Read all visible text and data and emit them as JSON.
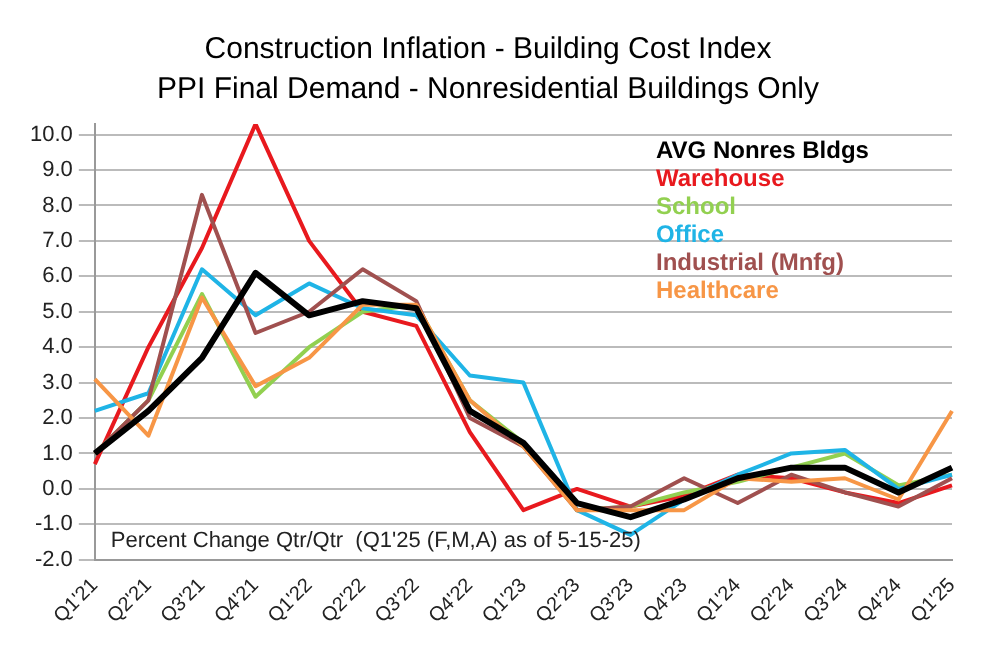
{
  "chart_data": {
    "type": "line",
    "title": "Construction Inflation - Building Cost Index",
    "subtitle": "PPI Final Demand - Nonresidential Buildings Only",
    "categories": [
      "Q1'21",
      "Q2'21",
      "Q3'21",
      "Q4'21",
      "Q1'22",
      "Q2'22",
      "Q3'22",
      "Q4'22",
      "Q1'23",
      "Q2'23",
      "Q3'23",
      "Q4'23",
      "Q1'24",
      "Q2'24",
      "Q3'24",
      "Q4'24",
      "Q1'25"
    ],
    "series": [
      {
        "name": "Warehouse",
        "color": "#e8191e",
        "values": [
          0.7,
          4.0,
          6.8,
          10.3,
          7.0,
          5.0,
          4.6,
          1.6,
          -0.6,
          0.0,
          -0.5,
          -0.2,
          0.4,
          0.3,
          -0.1,
          -0.4,
          0.1
        ]
      },
      {
        "name": "School",
        "color": "#92d050",
        "values": [
          1.0,
          2.5,
          5.5,
          2.6,
          4.0,
          5.0,
          5.2,
          2.5,
          1.3,
          -0.6,
          -0.5,
          -0.1,
          0.2,
          0.6,
          1.0,
          0.1,
          0.4
        ]
      },
      {
        "name": "Office",
        "color": "#1fb4e6",
        "values": [
          2.2,
          2.7,
          6.2,
          4.9,
          5.8,
          5.1,
          4.9,
          3.2,
          3.0,
          -0.6,
          -1.3,
          -0.3,
          0.4,
          1.0,
          1.1,
          0.0,
          0.4
        ]
      },
      {
        "name": "Industrial (Mnfg)",
        "color": "#a0504f",
        "values": [
          1.0,
          2.5,
          8.3,
          4.4,
          5.0,
          6.2,
          5.3,
          2.0,
          1.2,
          -0.6,
          -0.5,
          0.3,
          -0.4,
          0.4,
          -0.1,
          -0.5,
          0.3
        ]
      },
      {
        "name": "Healthcare",
        "color": "#f79646",
        "values": [
          3.1,
          1.5,
          5.4,
          2.9,
          3.7,
          5.2,
          5.2,
          2.5,
          1.2,
          -0.6,
          -0.6,
          -0.6,
          0.3,
          0.2,
          0.3,
          -0.3,
          2.2
        ]
      },
      {
        "name": "AVG Nonres Bldgs",
        "color": "#000000",
        "values": [
          1.0,
          2.2,
          3.7,
          6.1,
          4.9,
          5.3,
          5.1,
          2.2,
          1.3,
          -0.4,
          -0.8,
          -0.3,
          0.3,
          0.6,
          0.6,
          -0.1,
          0.6
        ]
      }
    ],
    "ylim": [
      -2,
      10.3
    ],
    "yticks": [
      {
        "value": -2,
        "label": "-2.0"
      },
      {
        "value": -1,
        "label": "-1.0"
      },
      {
        "value": 0,
        "label": "0.0"
      },
      {
        "value": 1,
        "label": "1.0"
      },
      {
        "value": 2,
        "label": "2.0"
      },
      {
        "value": 3,
        "label": "3.0"
      },
      {
        "value": 4,
        "label": "4.0"
      },
      {
        "value": 5,
        "label": "5.0"
      },
      {
        "value": 6,
        "label": "6.0"
      },
      {
        "value": 7,
        "label": "7.0"
      },
      {
        "value": 8,
        "label": "8.0"
      },
      {
        "value": 9,
        "label": "9.0"
      },
      {
        "value": 10,
        "label": "10.0"
      }
    ],
    "grid": "y",
    "legend": "top right",
    "marker": "none",
    "line_style": "solid",
    "annotations": [
      "Percent Change Qtr/Qtr  (Q1'25 (F,M,A) as of 5-15-25)"
    ]
  }
}
